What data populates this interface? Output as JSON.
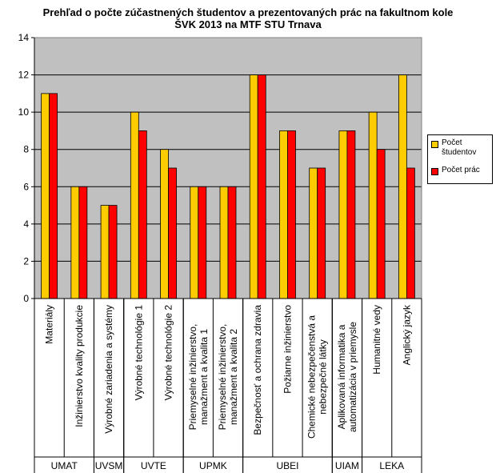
{
  "chart_data": {
    "type": "bar",
    "title_lines": [
      "Prehľad o počte zúčastnených študentov a prezentovaných prác na fakultnom kole",
      "ŠVK 2013 na MTF STU Trnava"
    ],
    "categories": [
      [
        "Materiály"
      ],
      [
        "Inžinierstvo kvality produkcie"
      ],
      [
        "Výrobné zariadenia a systémy"
      ],
      [
        "Výrobné technológie 1"
      ],
      [
        "Výrobné technológie 2"
      ],
      [
        "Priemyselné inžinierstvo,",
        "manažment a kvalita 1"
      ],
      [
        "Priemyselné inžinierstvo,",
        "manažment a kvalita 2"
      ],
      [
        "Bezpečnosť a ochrana zdravia"
      ],
      [
        "Požiarne inžinierstvo"
      ],
      [
        "Chemické nebezpečenstvá a",
        "nebezpečné látky"
      ],
      [
        "Aplikovaná informatika a",
        "automatizácia v priemysle"
      ],
      [
        "Humanitné vedy"
      ],
      [
        "Anglický jazyk"
      ]
    ],
    "groups": [
      {
        "label": "UMAT",
        "from": 0,
        "to": 1
      },
      {
        "label": "UVSM",
        "from": 2,
        "to": 2
      },
      {
        "label": "UVTE",
        "from": 3,
        "to": 4
      },
      {
        "label": "UPMK",
        "from": 5,
        "to": 6
      },
      {
        "label": "UBEI",
        "from": 7,
        "to": 9
      },
      {
        "label": "UIAM",
        "from": 10,
        "to": 10
      },
      {
        "label": "LEKA",
        "from": 11,
        "to": 12
      }
    ],
    "series": [
      {
        "name": "Počet študentov",
        "color": "#FFCC00",
        "values": [
          11,
          6,
          5,
          10,
          8,
          6,
          6,
          12,
          9,
          7,
          9,
          10,
          12
        ]
      },
      {
        "name": "Počet prác",
        "color": "#FF0000",
        "values": [
          11,
          6,
          5,
          9,
          7,
          6,
          6,
          12,
          9,
          7,
          9,
          8,
          7
        ]
      }
    ],
    "ylim": [
      0,
      14
    ],
    "yticks": [
      0,
      2,
      4,
      6,
      8,
      10,
      12,
      14
    ],
    "grid": true,
    "plot_background": "#C0C0C0",
    "legend_position": "right"
  }
}
